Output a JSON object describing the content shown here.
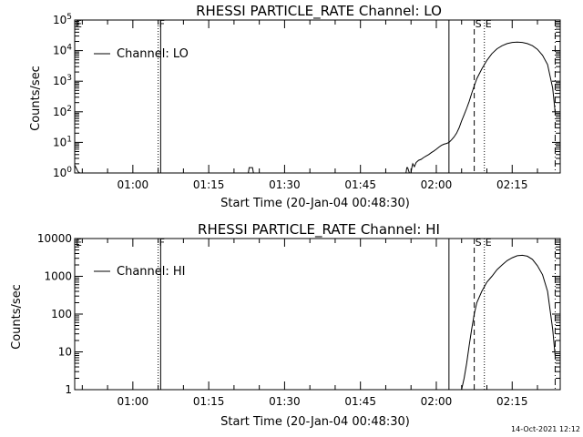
{
  "footer": {
    "timestamp": "14-Oct-2021 12:12"
  },
  "chart_data": [
    {
      "type": "line",
      "title": "RHESSI PARTICLE_RATE Channel: LO",
      "xlabel": "Start Time (20-Jan-04 00:48:30)",
      "ylabel": "Counts/sec",
      "yscale": "log",
      "ylim": [
        1,
        100000
      ],
      "y_ticks": [
        {
          "value": 1,
          "base": "10",
          "exp": "0"
        },
        {
          "value": 10,
          "base": "10",
          "exp": "1"
        },
        {
          "value": 100,
          "base": "10",
          "exp": "2"
        },
        {
          "value": 1000,
          "base": "10",
          "exp": "3"
        },
        {
          "value": 10000,
          "base": "10",
          "exp": "4"
        },
        {
          "value": 100000,
          "base": "10",
          "exp": "5"
        }
      ],
      "xlim": [
        "00:48:30",
        "02:24:30"
      ],
      "x_ticks": [
        "01:00",
        "01:15",
        "01:30",
        "01:45",
        "02:00",
        "02:15"
      ],
      "legend": {
        "entry": "Channel: LO",
        "placement": "top-left"
      },
      "markers": [
        {
          "time": "00:48:30",
          "style": "dotted",
          "label": "E"
        },
        {
          "time": "01:05:00",
          "style": "dotted",
          "label": "F"
        },
        {
          "time": "01:05:30",
          "style": "solid",
          "label": ""
        },
        {
          "time": "02:02:30",
          "style": "solid",
          "label": ""
        },
        {
          "time": "02:07:30",
          "style": "dashed",
          "label": "S"
        },
        {
          "time": "02:09:30",
          "style": "dotted",
          "label": "E"
        },
        {
          "time": "02:23:30",
          "style": "dashdot",
          "label": ""
        }
      ],
      "series": [
        {
          "name": "",
          "x": [
            "00:48:30",
            "00:48:50",
            "00:49:10",
            "00:49:30",
            "00:50:00",
            "01:22:50",
            "01:23:00",
            "01:23:20",
            "01:23:40",
            "01:23:50",
            "01:25:00",
            "01:54:00",
            "01:54:10",
            "01:54:20",
            "01:54:40",
            "01:55:00",
            "01:55:10",
            "01:55:20",
            "01:55:40",
            "01:56:00",
            "01:56:30",
            "01:57:00",
            "01:57:30",
            "01:58:00",
            "01:58:30",
            "01:59:00",
            "01:59:30",
            "02:00:00",
            "02:00:30",
            "02:01:00",
            "02:01:30",
            "02:02:00",
            "02:02:30",
            "02:03:00",
            "02:03:30",
            "02:04:00",
            "02:04:30",
            "02:05:00",
            "02:05:30",
            "02:06:00",
            "02:06:30",
            "02:07:00",
            "02:07:30",
            "02:08:00",
            "02:09:00",
            "02:10:00",
            "02:11:00",
            "02:12:00",
            "02:13:00",
            "02:14:00",
            "02:15:00",
            "02:16:00",
            "02:17:00",
            "02:18:00",
            "02:19:00",
            "02:20:00",
            "02:21:00",
            "02:22:00",
            "02:23:00",
            "02:23:30"
          ],
          "y": [
            1.8,
            1.4,
            1.1,
            1,
            1,
            1,
            1.5,
            1.5,
            1.5,
            1,
            1,
            1,
            1.5,
            1.5,
            1,
            1,
            1.5,
            2,
            1.6,
            2.2,
            2.6,
            2.8,
            3.2,
            3.6,
            4,
            4.6,
            5.2,
            6,
            7,
            8,
            8.7,
            9.2,
            10,
            12,
            15,
            20,
            30,
            50,
            80,
            130,
            220,
            400,
            700,
            1200,
            2500,
            4800,
            8000,
            11500,
            14500,
            17000,
            18500,
            19000,
            18500,
            17000,
            14500,
            11000,
            7000,
            3500,
            600,
            100
          ]
        }
      ]
    },
    {
      "type": "line",
      "title": "RHESSI PARTICLE_RATE Channel: HI",
      "xlabel": "Start Time (20-Jan-04 00:48:30)",
      "ylabel": "Counts/sec",
      "yscale": "log",
      "ylim": [
        1,
        10000
      ],
      "y_ticks": [
        {
          "value": 1,
          "text": "1"
        },
        {
          "value": 10,
          "text": "10"
        },
        {
          "value": 100,
          "text": "100"
        },
        {
          "value": 1000,
          "text": "1000"
        },
        {
          "value": 10000,
          "text": "10000"
        }
      ],
      "xlim": [
        "00:48:30",
        "02:24:30"
      ],
      "x_ticks": [
        "01:00",
        "01:15",
        "01:30",
        "01:45",
        "02:00",
        "02:15"
      ],
      "legend": {
        "entry": "Channel: HI",
        "placement": "top-left"
      },
      "markers": [
        {
          "time": "00:48:30",
          "style": "dotted",
          "label": "E"
        },
        {
          "time": "01:05:00",
          "style": "dotted",
          "label": "F"
        },
        {
          "time": "01:05:30",
          "style": "solid",
          "label": ""
        },
        {
          "time": "02:02:30",
          "style": "solid",
          "label": ""
        },
        {
          "time": "02:07:30",
          "style": "dashed",
          "label": "S"
        },
        {
          "time": "02:09:30",
          "style": "dotted",
          "label": "E"
        },
        {
          "time": "02:23:30",
          "style": "dashdot",
          "label": ""
        }
      ],
      "series": [
        {
          "name": "",
          "x": [
            "02:05:00",
            "02:05:30",
            "02:06:00",
            "02:06:30",
            "02:07:00",
            "02:07:30",
            "02:08:00",
            "02:09:00",
            "02:10:00",
            "02:11:00",
            "02:12:00",
            "02:13:00",
            "02:14:00",
            "02:15:00",
            "02:16:00",
            "02:17:00",
            "02:18:00",
            "02:19:00",
            "02:20:00",
            "02:21:00",
            "02:22:00",
            "02:23:00",
            "02:23:30"
          ],
          "y": [
            1,
            2,
            5,
            15,
            40,
            100,
            200,
            400,
            700,
            1000,
            1500,
            2000,
            2600,
            3100,
            3500,
            3600,
            3400,
            2800,
            1900,
            1100,
            400,
            40,
            8
          ]
        }
      ]
    }
  ]
}
